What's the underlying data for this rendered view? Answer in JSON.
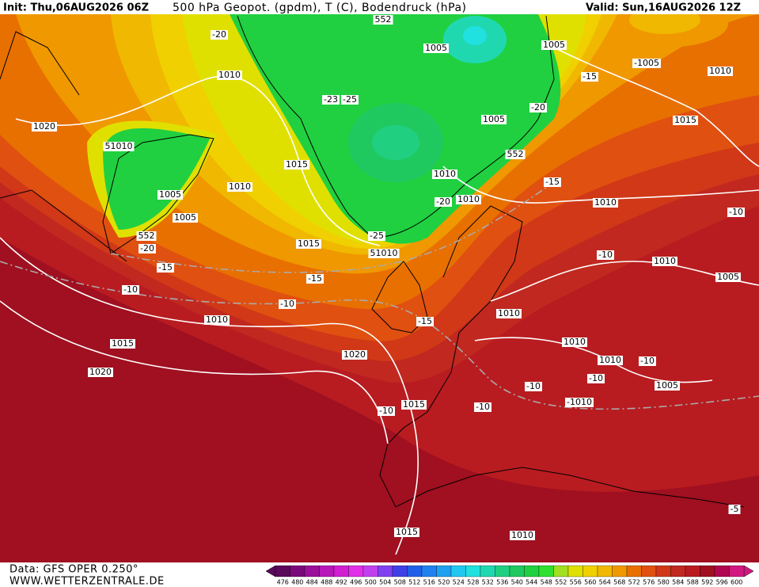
{
  "header": {
    "init": "Init: Thu,06AUG2026 06Z",
    "title": "500 hPa Geopot. (gpdm), T (C), Bodendruck (hPa)",
    "valid": "Valid: Sun,16AUG2026 12Z"
  },
  "footer": {
    "source": "Data: GFS OPER 0.250°",
    "site": "WWW.WETTERZENTRALE.DE"
  },
  "colorbar": {
    "values": [
      476,
      480,
      484,
      488,
      492,
      496,
      500,
      504,
      508,
      512,
      516,
      520,
      524,
      528,
      532,
      536,
      540,
      544,
      548,
      552,
      556,
      560,
      564,
      568,
      572,
      576,
      580,
      584,
      588,
      592,
      596,
      600
    ],
    "colors": [
      "#5a0a5a",
      "#7a0a7a",
      "#9a109a",
      "#b818b8",
      "#d020d0",
      "#e030e8",
      "#c040f0",
      "#8040f0",
      "#4040e8",
      "#2060e8",
      "#2080f0",
      "#20a0f0",
      "#20c8f0",
      "#20e0e0",
      "#20d8b0",
      "#20d080",
      "#20c860",
      "#20d040",
      "#30e030",
      "#a0e020",
      "#e0e000",
      "#f0d000",
      "#f0b800",
      "#f09800",
      "#e87000",
      "#e05010",
      "#d03818",
      "#c02820",
      "#b81c20",
      "#a01020",
      "#b00850",
      "#d01880"
    ]
  },
  "map": {
    "labels": [
      "-20",
      "1010",
      "552",
      "1005",
      "1005",
      "-1005",
      "1010",
      "-15",
      "-23",
      "-25",
      "1020",
      "-20",
      "1005",
      "1015",
      "51010",
      "1015",
      "552",
      "1010",
      "1010",
      "1005",
      "-15",
      "1010",
      "-20",
      "1010",
      "1005",
      "-10",
      "-25",
      "552",
      "51010",
      "-20",
      "1015",
      "-15",
      "-10",
      "1010",
      "1005",
      "-15",
      "-10",
      "-10",
      "1010",
      "1010",
      "-15",
      "1010",
      "1015",
      "1020",
      "1010",
      "-10",
      "1020",
      "-10",
      "-10",
      "1005",
      "-1010",
      "1015",
      "-10",
      "-10",
      "-5",
      "1015",
      "1010"
    ]
  }
}
